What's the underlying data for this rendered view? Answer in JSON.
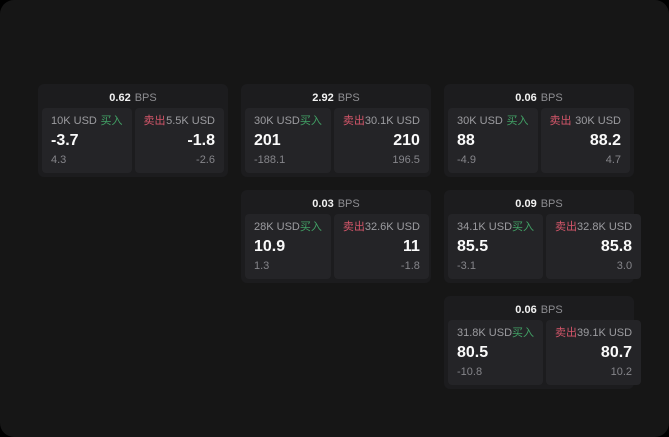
{
  "labels": {
    "bps_suffix": "BPS",
    "buy": "买入",
    "sell": "卖出"
  },
  "colors": {
    "window_bg": "#161616",
    "card_bg": "#1c1c1e",
    "panel_bg": "#242427",
    "buy": "#42a266",
    "sell": "#d4566a"
  },
  "cards": [
    {
      "row": 1,
      "col": 1,
      "bps": "0.62",
      "buy": {
        "amount": "10K USD",
        "value": "-3.7",
        "sub": "4.3"
      },
      "sell": {
        "amount": "5.5K USD",
        "value": "-1.8",
        "sub": "-2.6"
      }
    },
    {
      "row": 1,
      "col": 2,
      "bps": "2.92",
      "buy": {
        "amount": "30K USD",
        "value": "201",
        "sub": "-188.1"
      },
      "sell": {
        "amount": "30.1K USD",
        "value": "210",
        "sub": "196.5"
      }
    },
    {
      "row": 1,
      "col": 3,
      "bps": "0.06",
      "buy": {
        "amount": "30K USD",
        "value": "88",
        "sub": "-4.9"
      },
      "sell": {
        "amount": "30K USD",
        "value": "88.2",
        "sub": "4.7"
      }
    },
    {
      "row": 2,
      "col": 2,
      "bps": "0.03",
      "buy": {
        "amount": "28K USD",
        "value": "10.9",
        "sub": "1.3"
      },
      "sell": {
        "amount": "32.6K USD",
        "value": "11",
        "sub": "-1.8"
      }
    },
    {
      "row": 2,
      "col": 3,
      "bps": "0.09",
      "buy": {
        "amount": "34.1K USD",
        "value": "85.5",
        "sub": "-3.1"
      },
      "sell": {
        "amount": "32.8K USD",
        "value": "85.8",
        "sub": "3.0"
      }
    },
    {
      "row": 3,
      "col": 3,
      "bps": "0.06",
      "buy": {
        "amount": "31.8K USD",
        "value": "80.5",
        "sub": "-10.8"
      },
      "sell": {
        "amount": "39.1K USD",
        "value": "80.7",
        "sub": "10.2"
      }
    }
  ]
}
